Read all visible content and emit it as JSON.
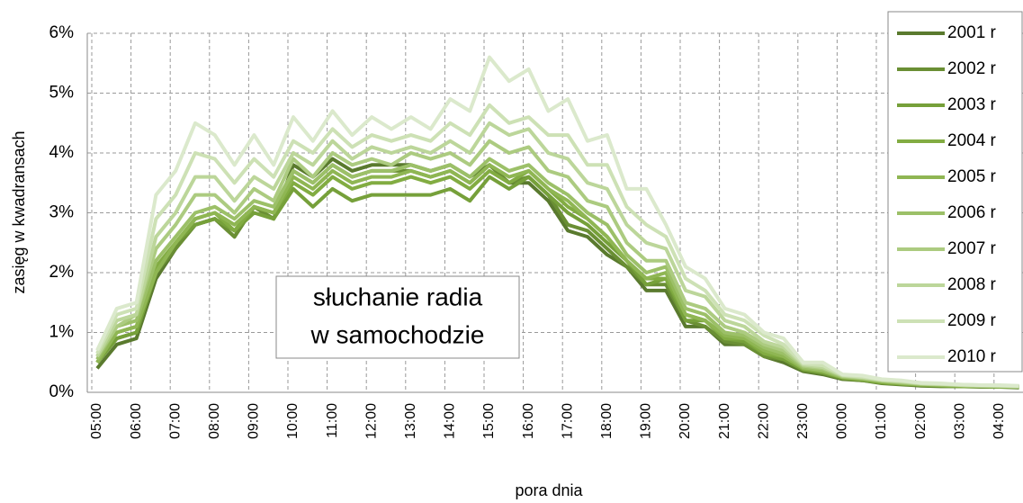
{
  "chart_data": {
    "type": "line",
    "x_label": "pora dnia",
    "y_label": "zasięg w kwadransach",
    "annotation": [
      "słuchanie radia",
      "w samochodzie"
    ],
    "categories": [
      "05:00",
      null,
      "06:00",
      null,
      "07:00",
      null,
      "08:00",
      null,
      "09:00",
      null,
      "10:00",
      null,
      "11:00",
      null,
      "12:00",
      null,
      "13:00",
      null,
      "14:00",
      null,
      "15:00",
      null,
      "16:00",
      null,
      "17:00",
      null,
      "18:00",
      null,
      "19:00",
      null,
      "20:00",
      null,
      "21:00",
      null,
      "22:00",
      null,
      "23:00",
      null,
      "00:00",
      null,
      "01:00",
      null,
      "02:00",
      null,
      "03:00",
      null,
      "04:00",
      null
    ],
    "ylim": [
      0,
      6
    ],
    "yticks": [
      {
        "value": 0,
        "label": "0%"
      },
      {
        "value": 1,
        "label": "1%"
      },
      {
        "value": 2,
        "label": "2%"
      },
      {
        "value": 3,
        "label": "3%"
      },
      {
        "value": 4,
        "label": "4%"
      },
      {
        "value": 5,
        "label": "5%"
      },
      {
        "value": 6,
        "label": "6%"
      }
    ],
    "grid": true,
    "legend": "top-right",
    "series": [
      {
        "name": "2001 r",
        "color": "#5a7a2e",
        "values": [
          0.4,
          0.8,
          0.9,
          1.9,
          2.4,
          2.8,
          2.9,
          2.6,
          3.1,
          2.9,
          3.8,
          3.6,
          3.9,
          3.7,
          3.8,
          3.8,
          3.8,
          3.7,
          3.8,
          3.6,
          3.8,
          3.5,
          3.5,
          3.2,
          2.7,
          2.6,
          2.3,
          2.1,
          1.7,
          1.7,
          1.1,
          1.1,
          0.8,
          0.8,
          0.6,
          0.5,
          0.35,
          0.3,
          0.22,
          0.2,
          0.15,
          0.13,
          0.11,
          0.1,
          0.1,
          0.09,
          0.09,
          0.08
        ]
      },
      {
        "name": "2002 r",
        "color": "#6a8f34",
        "values": [
          0.5,
          0.9,
          1.0,
          2.0,
          2.4,
          2.8,
          2.9,
          2.6,
          3.1,
          2.9,
          3.7,
          3.5,
          3.8,
          3.6,
          3.7,
          3.7,
          3.7,
          3.6,
          3.7,
          3.5,
          3.8,
          3.5,
          3.6,
          3.3,
          2.8,
          2.7,
          2.4,
          2.1,
          1.8,
          1.8,
          1.2,
          1.1,
          0.85,
          0.8,
          0.6,
          0.55,
          0.37,
          0.32,
          0.23,
          0.2,
          0.16,
          0.14,
          0.12,
          0.11,
          0.1,
          0.1,
          0.09,
          0.09
        ]
      },
      {
        "name": "2003 r",
        "color": "#76a03a",
        "values": [
          0.5,
          0.9,
          1.0,
          2.0,
          2.5,
          2.8,
          2.9,
          2.7,
          3.0,
          2.9,
          3.4,
          3.1,
          3.4,
          3.2,
          3.3,
          3.3,
          3.3,
          3.3,
          3.4,
          3.2,
          3.6,
          3.4,
          3.6,
          3.3,
          3.0,
          2.8,
          2.5,
          2.2,
          1.8,
          1.9,
          1.2,
          1.2,
          0.9,
          0.85,
          0.65,
          0.55,
          0.38,
          0.33,
          0.24,
          0.21,
          0.16,
          0.14,
          0.12,
          0.11,
          0.1,
          0.1,
          0.09,
          0.09
        ]
      },
      {
        "name": "2004 r",
        "color": "#82ac42",
        "values": [
          0.5,
          1.0,
          1.1,
          2.1,
          2.5,
          2.9,
          3.0,
          2.7,
          3.1,
          3.0,
          3.5,
          3.3,
          3.6,
          3.4,
          3.5,
          3.5,
          3.6,
          3.5,
          3.6,
          3.4,
          3.7,
          3.5,
          3.7,
          3.4,
          3.1,
          2.9,
          2.6,
          2.2,
          1.9,
          1.9,
          1.3,
          1.2,
          0.9,
          0.9,
          0.65,
          0.6,
          0.4,
          0.35,
          0.25,
          0.22,
          0.17,
          0.15,
          0.13,
          0.12,
          0.11,
          0.1,
          0.1,
          0.09
        ]
      },
      {
        "name": "2005 r",
        "color": "#8fb653",
        "values": [
          0.5,
          1.0,
          1.1,
          2.0,
          2.5,
          2.9,
          3.0,
          2.8,
          3.1,
          3.0,
          3.6,
          3.4,
          3.7,
          3.5,
          3.6,
          3.6,
          3.7,
          3.6,
          3.7,
          3.5,
          3.8,
          3.6,
          3.7,
          3.4,
          3.2,
          2.9,
          2.6,
          2.2,
          1.9,
          2.0,
          1.3,
          1.2,
          0.95,
          0.9,
          0.7,
          0.6,
          0.4,
          0.35,
          0.25,
          0.22,
          0.18,
          0.15,
          0.13,
          0.12,
          0.11,
          0.1,
          0.1,
          0.09
        ]
      },
      {
        "name": "2006 r",
        "color": "#9cc068",
        "values": [
          0.55,
          1.1,
          1.2,
          2.2,
          2.6,
          3.0,
          3.1,
          2.9,
          3.2,
          3.1,
          3.7,
          3.5,
          3.8,
          3.6,
          3.7,
          3.7,
          3.8,
          3.7,
          3.8,
          3.6,
          3.9,
          3.7,
          3.8,
          3.5,
          3.3,
          3.0,
          2.8,
          2.3,
          2.0,
          2.1,
          1.4,
          1.3,
          1.0,
          0.95,
          0.75,
          0.65,
          0.42,
          0.37,
          0.26,
          0.23,
          0.19,
          0.16,
          0.14,
          0.13,
          0.12,
          0.11,
          0.1,
          0.1
        ]
      },
      {
        "name": "2007 r",
        "color": "#accb80",
        "values": [
          0.6,
          1.1,
          1.3,
          2.4,
          2.8,
          3.3,
          3.3,
          3.0,
          3.4,
          3.2,
          3.9,
          3.6,
          4.0,
          3.8,
          3.9,
          3.8,
          4.0,
          3.9,
          4.0,
          3.8,
          4.2,
          4.0,
          4.1,
          3.7,
          3.6,
          3.2,
          3.1,
          2.5,
          2.2,
          2.2,
          1.5,
          1.4,
          1.1,
          1.0,
          0.8,
          0.7,
          0.44,
          0.4,
          0.27,
          0.24,
          0.2,
          0.17,
          0.14,
          0.13,
          0.12,
          0.11,
          0.11,
          0.1
        ]
      },
      {
        "name": "2008 r",
        "color": "#bcd69a",
        "values": [
          0.6,
          1.2,
          1.3,
          2.6,
          3.0,
          3.6,
          3.6,
          3.2,
          3.6,
          3.4,
          4.0,
          3.8,
          4.2,
          3.9,
          4.1,
          4.0,
          4.1,
          4.0,
          4.2,
          4.0,
          4.5,
          4.3,
          4.4,
          4.0,
          3.9,
          3.5,
          3.4,
          2.8,
          2.5,
          2.4,
          1.7,
          1.6,
          1.2,
          1.1,
          0.85,
          0.75,
          0.46,
          0.42,
          0.28,
          0.25,
          0.2,
          0.18,
          0.15,
          0.14,
          0.12,
          0.11,
          0.11,
          0.1
        ]
      },
      {
        "name": "2009 r",
        "color": "#cde1b5",
        "values": [
          0.65,
          1.3,
          1.4,
          2.9,
          3.3,
          4.0,
          3.9,
          3.5,
          3.9,
          3.6,
          4.2,
          4.0,
          4.4,
          4.1,
          4.3,
          4.2,
          4.3,
          4.2,
          4.5,
          4.3,
          4.8,
          4.5,
          4.6,
          4.3,
          4.3,
          3.8,
          3.8,
          3.1,
          2.8,
          2.6,
          1.9,
          1.7,
          1.3,
          1.2,
          0.95,
          0.8,
          0.48,
          0.45,
          0.29,
          0.26,
          0.21,
          0.19,
          0.15,
          0.14,
          0.13,
          0.12,
          0.11,
          0.1
        ]
      },
      {
        "name": "2010 r",
        "color": "#dbe9cc",
        "values": [
          0.7,
          1.4,
          1.5,
          3.3,
          3.7,
          4.5,
          4.3,
          3.8,
          4.3,
          3.8,
          4.6,
          4.2,
          4.7,
          4.3,
          4.6,
          4.4,
          4.6,
          4.4,
          4.9,
          4.7,
          5.6,
          5.2,
          5.4,
          4.7,
          4.9,
          4.2,
          4.3,
          3.4,
          3.4,
          2.8,
          2.1,
          1.9,
          1.4,
          1.3,
          1.0,
          0.9,
          0.5,
          0.5,
          0.3,
          0.28,
          0.22,
          0.2,
          0.16,
          0.15,
          0.13,
          0.12,
          0.12,
          0.11
        ]
      }
    ]
  }
}
